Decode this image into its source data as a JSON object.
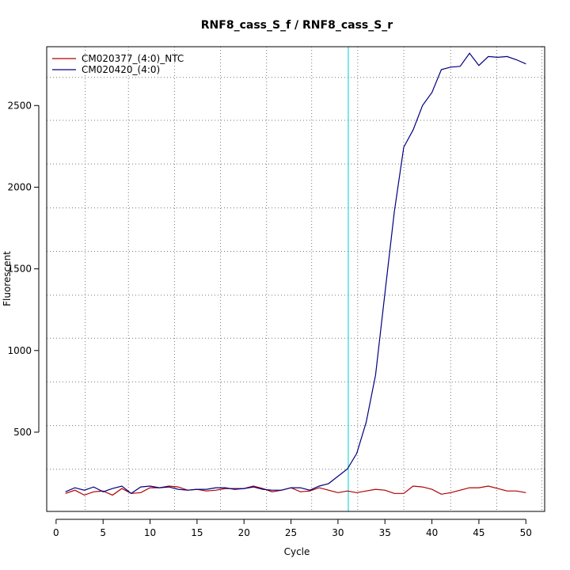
{
  "chart_data": {
    "type": "line",
    "title": "RNF8_cass_S_f / RNF8_cass_S_r",
    "xlabel": "Cycle",
    "ylabel": "Fluorescent",
    "xlim": [
      -1,
      52
    ],
    "ylim": [
      15,
      2860
    ],
    "x_ticks": [
      0,
      5,
      10,
      15,
      20,
      25,
      30,
      35,
      40,
      45,
      50
    ],
    "y_ticks": [
      500,
      1000,
      1500,
      2000,
      2500
    ],
    "grid": true,
    "grid_x": [
      3.1,
      7.7,
      12.6,
      17.5,
      22.4,
      27.2,
      32.1,
      37.0,
      42.0,
      46.9,
      51.7
    ],
    "grid_y": [
      273,
      540,
      808,
      1075,
      1339,
      1607,
      1873,
      2142,
      2409,
      2672
    ],
    "threshold_x": 31.1,
    "threshold_color": "#00cccc",
    "legend_position": "top-left",
    "series": [
      {
        "name": "CM020377_(4:0)_NTC",
        "color": "#b00000",
        "x": [
          1,
          2,
          3,
          4,
          5,
          6,
          7,
          8,
          9,
          10,
          11,
          12,
          13,
          14,
          15,
          16,
          17,
          18,
          19,
          20,
          21,
          22,
          23,
          24,
          25,
          26,
          27,
          28,
          29,
          30,
          31,
          32,
          33,
          34,
          35,
          36,
          37,
          38,
          39,
          40,
          41,
          42,
          43,
          44,
          45,
          46,
          47,
          48,
          49,
          50
        ],
        "y": [
          125,
          145,
          115,
          135,
          140,
          115,
          155,
          125,
          130,
          160,
          160,
          170,
          165,
          145,
          150,
          140,
          145,
          155,
          155,
          155,
          170,
          155,
          135,
          145,
          160,
          135,
          140,
          160,
          145,
          130,
          140,
          130,
          140,
          150,
          145,
          125,
          125,
          170,
          165,
          150,
          120,
          130,
          145,
          160,
          160,
          170,
          155,
          140,
          140,
          130
        ]
      },
      {
        "name": "CM020420_(4:0)",
        "color": "#000080",
        "x": [
          1,
          2,
          3,
          4,
          5,
          6,
          7,
          8,
          9,
          10,
          11,
          12,
          13,
          14,
          15,
          16,
          17,
          18,
          19,
          20,
          21,
          22,
          23,
          24,
          25,
          26,
          27,
          28,
          29,
          30,
          31,
          32,
          33,
          34,
          35,
          36,
          37,
          38,
          39,
          40,
          41,
          42,
          43,
          44,
          45,
          46,
          47,
          48,
          49,
          50
        ],
        "y": [
          135,
          160,
          145,
          165,
          135,
          155,
          170,
          125,
          165,
          170,
          160,
          165,
          150,
          145,
          150,
          150,
          160,
          160,
          150,
          155,
          165,
          150,
          145,
          145,
          160,
          160,
          145,
          170,
          185,
          230,
          275,
          370,
          560,
          850,
          1350,
          1850,
          2245,
          2350,
          2500,
          2580,
          2720,
          2735,
          2740,
          2820,
          2745,
          2800,
          2795,
          2800,
          2780,
          2755
        ]
      }
    ]
  }
}
